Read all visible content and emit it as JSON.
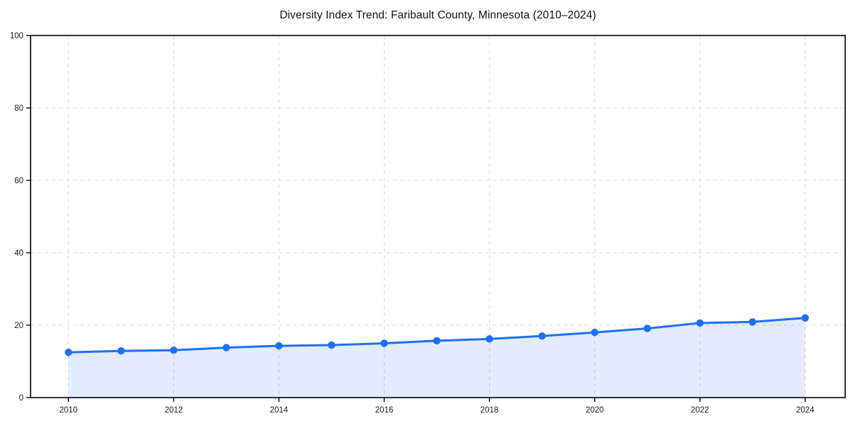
{
  "chart_data": {
    "type": "line",
    "title": "Diversity Index Trend: Faribault County, Minnesota (2010–2024)",
    "xlabel": "",
    "ylabel": "",
    "x": [
      2010,
      2011,
      2012,
      2013,
      2014,
      2015,
      2016,
      2017,
      2018,
      2019,
      2020,
      2021,
      2022,
      2023,
      2024
    ],
    "series": [
      {
        "name": "Diversity Index",
        "values": [
          12.5,
          12.9,
          13.1,
          13.8,
          14.3,
          14.5,
          15.0,
          15.7,
          16.2,
          17.0,
          18.0,
          19.1,
          20.6,
          20.9,
          22.0
        ]
      }
    ],
    "ylim": [
      0,
      100
    ],
    "xlim": [
      2009.28,
      2024.76
    ],
    "yticks": [
      0,
      20,
      40,
      60,
      80,
      100
    ],
    "xticks": [
      2010,
      2012,
      2014,
      2016,
      2018,
      2020,
      2022,
      2024
    ],
    "grid": true,
    "grid_style": "dashed",
    "legend": false,
    "marker": "circle",
    "colors": {
      "line": "#1f6ff2",
      "marker": "#1f6ff2",
      "area_fill": "rgba(31,111,242,0.13)",
      "grid": "#dcdcdc",
      "axis": "#000000",
      "text": "#1a1a1a",
      "background": "#ffffff"
    }
  }
}
